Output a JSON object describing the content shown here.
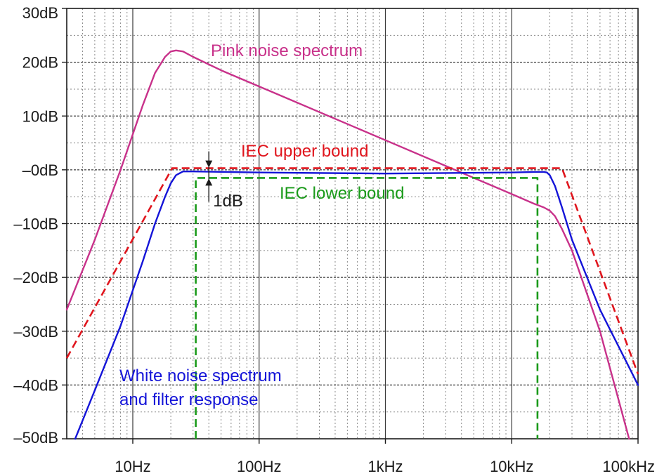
{
  "chart_data": {
    "type": "line",
    "title": "",
    "xlabel": "",
    "ylabel": "",
    "x_scale": "log",
    "xlim": [
      3,
      100000
    ],
    "ylim": [
      -50,
      30
    ],
    "grid": true,
    "x_tick_values": [
      10,
      100,
      1000,
      10000,
      100000
    ],
    "x_tick_labels": [
      "10Hz",
      "100Hz",
      "1kHz",
      "10kHz",
      "100kHz"
    ],
    "y_tick_values": [
      30,
      20,
      10,
      0,
      -10,
      -20,
      -30,
      -40,
      -50
    ],
    "y_tick_labels": [
      "30dB",
      "20dB",
      "10dB",
      "–0dB",
      "–10dB",
      "–20dB",
      "–30dB",
      "–40dB",
      "–50dB"
    ],
    "series": [
      {
        "key": "pink",
        "name": "Pink noise spectrum",
        "color": "#c8318a",
        "dash": false,
        "x": [
          3,
          5,
          8,
          12,
          15,
          18,
          20,
          22,
          25,
          30,
          50,
          100,
          1000,
          10000,
          15000,
          18000,
          20000,
          22000,
          25000,
          30000,
          50000,
          85000
        ],
        "y": [
          -26,
          -13,
          0,
          12,
          18,
          21,
          22,
          22.2,
          22,
          21,
          18.5,
          15.5,
          5.5,
          -4.5,
          -6.3,
          -7,
          -7.6,
          -8.6,
          -11,
          -15,
          -30,
          -50
        ]
      },
      {
        "key": "white",
        "name": "White noise spectrum and filter response",
        "color": "#1414d8",
        "dash": false,
        "x": [
          3.5,
          5,
          8,
          12,
          15,
          18,
          20,
          22,
          25,
          30,
          100,
          1000,
          10000,
          15000,
          18000,
          19000,
          20000,
          22000,
          25000,
          30000,
          50000,
          100000
        ],
        "y": [
          -50,
          -41,
          -29,
          -17,
          -10,
          -5,
          -2.5,
          -1,
          -0.3,
          -0.3,
          -0.5,
          -0.7,
          -0.5,
          -0.4,
          -0.4,
          -0.5,
          -1,
          -3,
          -7,
          -13,
          -26,
          -40
        ]
      },
      {
        "key": "upper",
        "name": "IEC upper bound",
        "color": "#e0151d",
        "dash": true,
        "x": [
          3,
          20.5,
          25000,
          100000
        ],
        "y": [
          -35,
          0.3,
          0.3,
          -38
        ]
      },
      {
        "key": "lower",
        "name": "IEC lower bound",
        "color": "#1a9a1a",
        "dash": true,
        "x": [
          31.5,
          31.5,
          16000,
          16000
        ],
        "y": [
          -50,
          -1.5,
          -1.5,
          -50
        ]
      }
    ],
    "annotations": [
      {
        "key": "pink_label",
        "text": "Pink noise spectrum",
        "color": "#c8318a"
      },
      {
        "key": "upper_label",
        "text": "IEC upper bound",
        "color": "#e0151d"
      },
      {
        "key": "lower_label",
        "text": "IEC lower bound",
        "color": "#1a9a1a"
      },
      {
        "key": "white_label_1",
        "text": "White noise spectrum",
        "color": "#1414d8"
      },
      {
        "key": "white_label_2",
        "text": "and filter response",
        "color": "#1414d8"
      },
      {
        "key": "gap_label",
        "text": "1dB",
        "color": "#1a1a1a"
      }
    ]
  }
}
